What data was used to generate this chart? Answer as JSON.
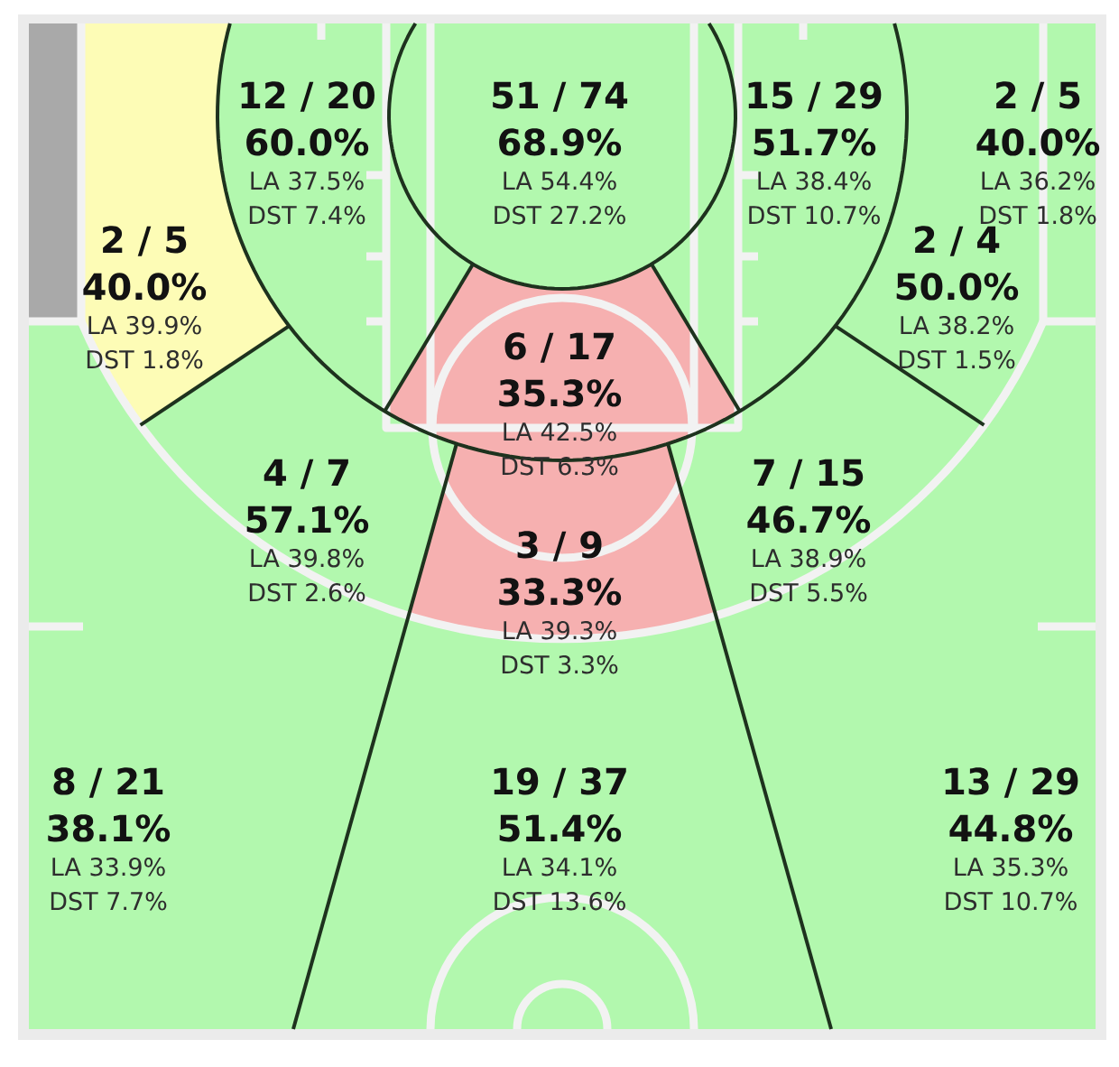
{
  "chart_data": {
    "type": "other",
    "categories": [
      null,
      null,
      null,
      null,
      null,
      null,
      null,
      null,
      null,
      null,
      null,
      null,
      null,
      null
    ],
    "values": [
      null,
      60.0,
      68.9,
      51.7,
      40.0,
      40.0,
      50.0,
      35.3,
      57.1,
      46.7,
      33.3,
      38.1,
      51.4,
      44.8
    ],
    "value_labels": [
      null,
      "60.0%",
      "68.9%",
      "51.7%",
      "40.0%",
      "40.0%",
      "50.0%",
      "35.3%",
      "57.1%",
      "46.7%",
      "33.3%",
      "38.1%",
      "51.4%",
      "44.8%"
    ],
    "colors": [
      "#a9a9a9",
      "#b2f8ae",
      "#b2f8ae",
      "#b2f8ae",
      "#b2f8ae",
      "#fdfcb6",
      "#b2f8ae",
      "#f6b0b0",
      "#b2f8ae",
      "#b2f8ae",
      "#f6b0b0",
      "#b2f8ae",
      "#b2f8ae",
      "#b2f8ae"
    ],
    "annotations": [
      "12 / 20",
      "LA 37.5%",
      "DST 7.4%",
      "51 / 74",
      "LA 54.4%",
      "DST 27.2%",
      "15 / 29",
      "LA 38.4%",
      "DST 10.7%",
      "2 / 5",
      "LA 36.2%",
      "DST 1.8%",
      "2 / 5",
      "LA 39.9%",
      "DST 1.8%",
      "2 / 4",
      "LA 38.2%",
      "DST 1.5%",
      "6 / 17",
      "LA 42.5%",
      "DST 6.3%",
      "4 / 7",
      "LA 39.8%",
      "DST 2.6%",
      "7 / 15",
      "LA 38.9%",
      "DST 5.5%",
      "3 / 9",
      "LA 39.3%",
      "DST 3.3%",
      "8 / 21",
      "LA 33.9%",
      "DST 7.7%",
      "19 / 37",
      "LA 34.1%",
      "DST 13.6%",
      "13 / 29",
      "LA 35.3%",
      "DST 10.7%"
    ]
  }
}
